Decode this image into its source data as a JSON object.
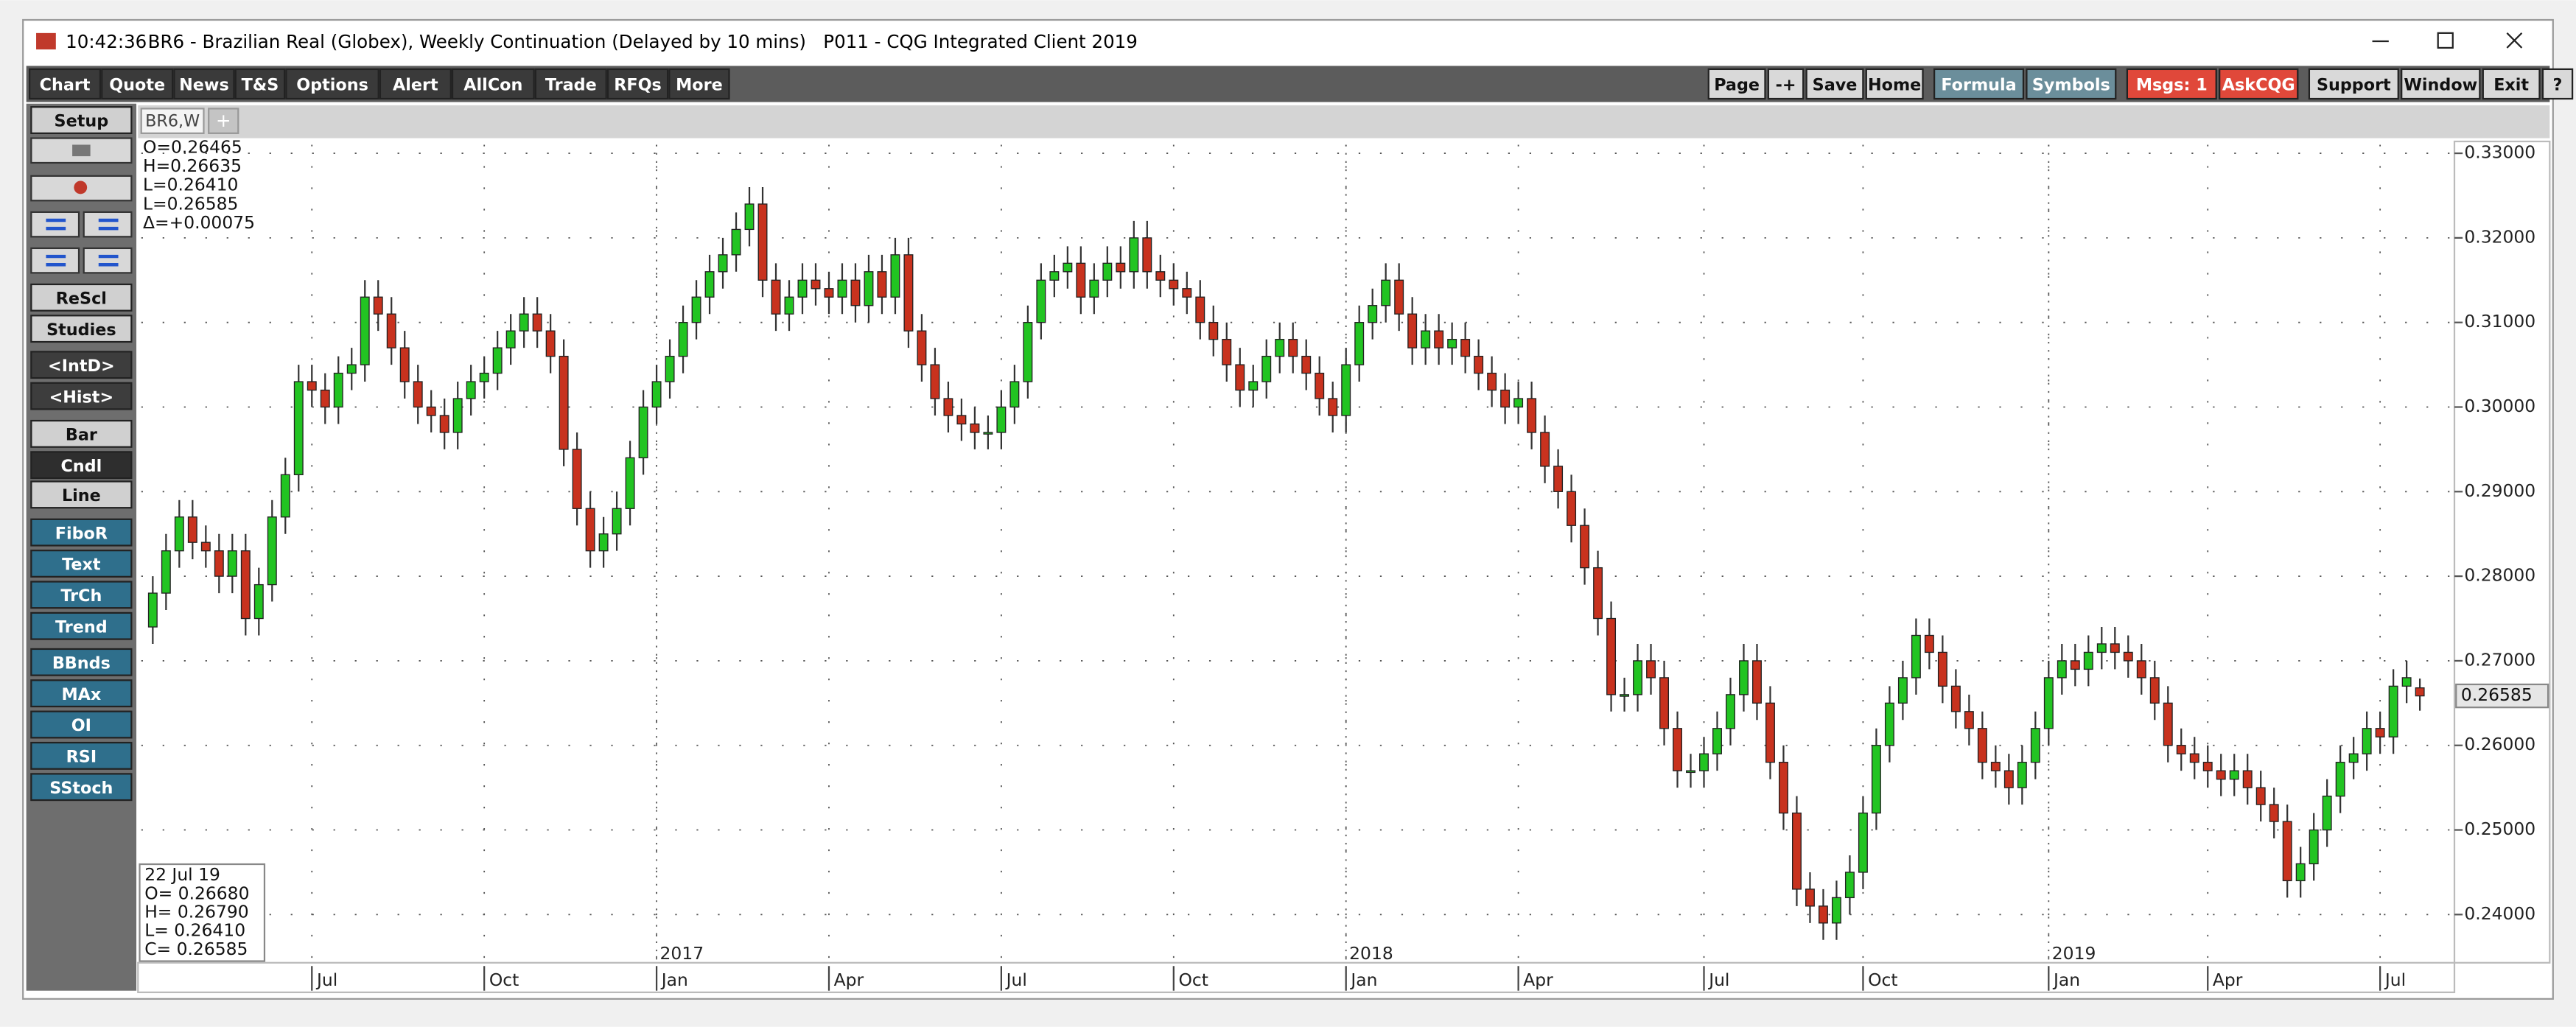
{
  "window": {
    "time": "10:42:36",
    "title": "BR6 - Brazilian Real (Globex), Weekly Continuation (Delayed by 10 mins)   P011 - CQG Integrated Client 2019"
  },
  "toolbar": {
    "left": [
      "Chart",
      "Quote",
      "News",
      "T&S",
      "Options",
      "Alert",
      "AllCon",
      "Trade",
      "RFQs",
      "More"
    ],
    "right": [
      "Page",
      "-+",
      "Save",
      "Home",
      "Formula",
      "Symbols",
      "Msgs: 1",
      "AskCQG",
      "Support",
      "Window",
      "Exit",
      "?"
    ]
  },
  "sidebar": [
    "Setup",
    "ReScl",
    "Studies",
    "<IntD>",
    "<Hist>",
    "Bar",
    "Cndl",
    "Line",
    "FiboR",
    "Text",
    "TrCh",
    "Trend",
    "BBnds",
    "MAx",
    "OI",
    "RSI",
    "SStoch"
  ],
  "tabs": [
    "BR6,W",
    "+"
  ],
  "cursor_readout": [
    "O=0.26465",
    "H=0.26635",
    "L=0.26410",
    "L=0.26585",
    "Δ=+0.00075"
  ],
  "bar_info": [
    "22 Jul 19",
    "O= 0.26680",
    "H= 0.26790",
    "L= 0.26410",
    "C= 0.26585"
  ],
  "chart_data": {
    "type": "candlestick",
    "up_color": "#22c422",
    "down_color": "#c8321e",
    "open": [
      0.274,
      0.278,
      0.283,
      0.287,
      0.284,
      0.283,
      0.28,
      0.283,
      0.275,
      0.279,
      0.287,
      0.292,
      0.303,
      0.302,
      0.3,
      0.304,
      0.305,
      0.313,
      0.311,
      0.307,
      0.303,
      0.3,
      0.299,
      0.297,
      0.301,
      0.303,
      0.304,
      0.307,
      0.309,
      0.311,
      0.309,
      0.306,
      0.295,
      0.288,
      0.283,
      0.285,
      0.288,
      0.294,
      0.3,
      0.303,
      0.306,
      0.31,
      0.313,
      0.316,
      0.318,
      0.321,
      0.324,
      0.315,
      0.311,
      0.313,
      0.315,
      0.314,
      0.313,
      0.315,
      0.312,
      0.316,
      0.313,
      0.318,
      0.309,
      0.305,
      0.301,
      0.299,
      0.298,
      0.297,
      0.297,
      0.3,
      0.303,
      0.31,
      0.315,
      0.316,
      0.317,
      0.313,
      0.315,
      0.317,
      0.316,
      0.32,
      0.316,
      0.315,
      0.314,
      0.313,
      0.31,
      0.308,
      0.305,
      0.302,
      0.303,
      0.306,
      0.308,
      0.306,
      0.304,
      0.301,
      0.299,
      0.305,
      0.31,
      0.312,
      0.315,
      0.311,
      0.307,
      0.309,
      0.307,
      0.308,
      0.306,
      0.304,
      0.302,
      0.3,
      0.301,
      0.297,
      0.293,
      0.29,
      0.286,
      0.281,
      0.275,
      0.266,
      0.266,
      0.27,
      0.268,
      0.262,
      0.257,
      0.257,
      0.259,
      0.262,
      0.266,
      0.27,
      0.265,
      0.258,
      0.252,
      0.243,
      0.241,
      0.239,
      0.242,
      0.245,
      0.252,
      0.26,
      0.265,
      0.268,
      0.273,
      0.271,
      0.267,
      0.264,
      0.262,
      0.258,
      0.257,
      0.255,
      0.258,
      0.262,
      0.268,
      0.27,
      0.269,
      0.271,
      0.272,
      0.271,
      0.27,
      0.268,
      0.265,
      0.26,
      0.259,
      0.258,
      0.257,
      0.256,
      0.257,
      0.255,
      0.253,
      0.251,
      0.244,
      0.246,
      0.25,
      0.254,
      0.258,
      0.259,
      0.262,
      0.261,
      0.267,
      0.2668
    ],
    "high": [
      0.28,
      0.285,
      0.289,
      0.289,
      0.286,
      0.285,
      0.285,
      0.285,
      0.281,
      0.289,
      0.294,
      0.305,
      0.305,
      0.304,
      0.306,
      0.307,
      0.315,
      0.315,
      0.313,
      0.309,
      0.305,
      0.302,
      0.301,
      0.303,
      0.305,
      0.306,
      0.309,
      0.311,
      0.313,
      0.313,
      0.311,
      0.308,
      0.297,
      0.29,
      0.287,
      0.29,
      0.296,
      0.302,
      0.305,
      0.308,
      0.312,
      0.315,
      0.318,
      0.32,
      0.323,
      0.326,
      0.326,
      0.317,
      0.315,
      0.317,
      0.317,
      0.316,
      0.317,
      0.317,
      0.318,
      0.318,
      0.32,
      0.32,
      0.311,
      0.307,
      0.303,
      0.301,
      0.3,
      0.299,
      0.302,
      0.305,
      0.312,
      0.317,
      0.318,
      0.319,
      0.319,
      0.317,
      0.319,
      0.319,
      0.322,
      0.322,
      0.318,
      0.317,
      0.316,
      0.315,
      0.312,
      0.31,
      0.307,
      0.305,
      0.308,
      0.31,
      0.31,
      0.308,
      0.306,
      0.303,
      0.307,
      0.312,
      0.314,
      0.317,
      0.317,
      0.313,
      0.311,
      0.311,
      0.31,
      0.31,
      0.308,
      0.306,
      0.304,
      0.303,
      0.303,
      0.299,
      0.295,
      0.292,
      0.288,
      0.283,
      0.277,
      0.268,
      0.272,
      0.272,
      0.27,
      0.264,
      0.259,
      0.261,
      0.264,
      0.268,
      0.272,
      0.272,
      0.267,
      0.26,
      0.254,
      0.245,
      0.243,
      0.244,
      0.247,
      0.254,
      0.262,
      0.267,
      0.27,
      0.275,
      0.275,
      0.273,
      0.269,
      0.266,
      0.264,
      0.26,
      0.259,
      0.26,
      0.264,
      0.27,
      0.272,
      0.272,
      0.273,
      0.274,
      0.274,
      0.273,
      0.272,
      0.27,
      0.267,
      0.262,
      0.261,
      0.26,
      0.259,
      0.259,
      0.259,
      0.257,
      0.255,
      0.253,
      0.248,
      0.252,
      0.256,
      0.26,
      0.261,
      0.264,
      0.264,
      0.269,
      0.27,
      0.2679
    ],
    "low": [
      0.272,
      0.276,
      0.281,
      0.282,
      0.281,
      0.278,
      0.278,
      0.273,
      0.273,
      0.277,
      0.285,
      0.29,
      0.3,
      0.298,
      0.298,
      0.302,
      0.303,
      0.309,
      0.305,
      0.301,
      0.298,
      0.297,
      0.295,
      0.295,
      0.299,
      0.301,
      0.302,
      0.305,
      0.307,
      0.307,
      0.304,
      0.293,
      0.286,
      0.281,
      0.281,
      0.283,
      0.286,
      0.292,
      0.298,
      0.301,
      0.304,
      0.308,
      0.311,
      0.314,
      0.316,
      0.319,
      0.313,
      0.309,
      0.309,
      0.311,
      0.312,
      0.311,
      0.311,
      0.31,
      0.31,
      0.311,
      0.311,
      0.307,
      0.303,
      0.299,
      0.297,
      0.296,
      0.295,
      0.295,
      0.295,
      0.298,
      0.301,
      0.308,
      0.313,
      0.314,
      0.311,
      0.311,
      0.313,
      0.314,
      0.314,
      0.314,
      0.313,
      0.312,
      0.311,
      0.308,
      0.306,
      0.303,
      0.3,
      0.3,
      0.301,
      0.304,
      0.304,
      0.302,
      0.299,
      0.297,
      0.297,
      0.303,
      0.308,
      0.31,
      0.309,
      0.305,
      0.305,
      0.305,
      0.305,
      0.304,
      0.302,
      0.3,
      0.298,
      0.298,
      0.295,
      0.291,
      0.288,
      0.284,
      0.279,
      0.273,
      0.264,
      0.264,
      0.264,
      0.266,
      0.26,
      0.255,
      0.255,
      0.255,
      0.257,
      0.26,
      0.264,
      0.263,
      0.256,
      0.25,
      0.241,
      0.239,
      0.237,
      0.237,
      0.24,
      0.243,
      0.25,
      0.258,
      0.263,
      0.266,
      0.269,
      0.265,
      0.262,
      0.26,
      0.256,
      0.255,
      0.253,
      0.253,
      0.256,
      0.26,
      0.266,
      0.267,
      0.267,
      0.269,
      0.269,
      0.268,
      0.266,
      0.263,
      0.258,
      0.257,
      0.256,
      0.255,
      0.254,
      0.254,
      0.253,
      0.251,
      0.249,
      0.242,
      0.242,
      0.244,
      0.248,
      0.252,
      0.256,
      0.257,
      0.259,
      0.259,
      0.265,
      0.2641
    ],
    "close": [
      0.278,
      0.283,
      0.287,
      0.284,
      0.283,
      0.28,
      0.283,
      0.275,
      0.279,
      0.287,
      0.292,
      0.303,
      0.302,
      0.3,
      0.304,
      0.305,
      0.313,
      0.311,
      0.307,
      0.303,
      0.3,
      0.299,
      0.297,
      0.301,
      0.303,
      0.304,
      0.307,
      0.309,
      0.311,
      0.309,
      0.306,
      0.295,
      0.288,
      0.283,
      0.285,
      0.288,
      0.294,
      0.3,
      0.303,
      0.306,
      0.31,
      0.313,
      0.316,
      0.318,
      0.321,
      0.324,
      0.315,
      0.311,
      0.313,
      0.315,
      0.314,
      0.313,
      0.315,
      0.312,
      0.316,
      0.313,
      0.318,
      0.309,
      0.305,
      0.301,
      0.299,
      0.298,
      0.297,
      0.297,
      0.3,
      0.303,
      0.31,
      0.315,
      0.316,
      0.317,
      0.313,
      0.315,
      0.317,
      0.316,
      0.32,
      0.316,
      0.315,
      0.314,
      0.313,
      0.31,
      0.308,
      0.305,
      0.302,
      0.303,
      0.306,
      0.308,
      0.306,
      0.304,
      0.301,
      0.299,
      0.305,
      0.31,
      0.312,
      0.315,
      0.311,
      0.307,
      0.309,
      0.307,
      0.308,
      0.306,
      0.304,
      0.302,
      0.3,
      0.301,
      0.297,
      0.293,
      0.29,
      0.286,
      0.281,
      0.275,
      0.266,
      0.266,
      0.27,
      0.268,
      0.262,
      0.257,
      0.257,
      0.259,
      0.262,
      0.266,
      0.27,
      0.265,
      0.258,
      0.252,
      0.243,
      0.241,
      0.239,
      0.242,
      0.245,
      0.252,
      0.26,
      0.265,
      0.268,
      0.273,
      0.271,
      0.267,
      0.264,
      0.262,
      0.258,
      0.257,
      0.255,
      0.258,
      0.262,
      0.268,
      0.27,
      0.269,
      0.271,
      0.272,
      0.271,
      0.27,
      0.268,
      0.265,
      0.26,
      0.259,
      0.258,
      0.257,
      0.256,
      0.257,
      0.255,
      0.253,
      0.251,
      0.244,
      0.246,
      0.25,
      0.254,
      0.258,
      0.259,
      0.262,
      0.261,
      0.267,
      0.268,
      0.26585
    ],
    "ylim": [
      0.2343,
      0.3314
    ],
    "yticks": [
      {
        "value": 0.24,
        "label": "0.24000"
      },
      {
        "value": 0.25,
        "label": "0.25000"
      },
      {
        "value": 0.26,
        "label": "0.26000"
      },
      {
        "value": 0.27,
        "label": "0.27000"
      },
      {
        "value": 0.28,
        "label": "0.28000"
      },
      {
        "value": 0.29,
        "label": "0.29000"
      },
      {
        "value": 0.3,
        "label": "0.30000"
      },
      {
        "value": 0.31,
        "label": "0.31000"
      },
      {
        "value": 0.32,
        "label": "0.32000"
      },
      {
        "value": 0.33,
        "label": "0.33000"
      }
    ],
    "xticks": [
      {
        "value": 12,
        "label": "Jul"
      },
      {
        "value": 25,
        "label": "Oct"
      },
      {
        "value": 38,
        "label": "Jan"
      },
      {
        "value": 51,
        "label": "Apr"
      },
      {
        "value": 64,
        "label": "Jul"
      },
      {
        "value": 77,
        "label": "Oct"
      },
      {
        "value": 90,
        "label": "Jan"
      },
      {
        "value": 103,
        "label": "Apr"
      },
      {
        "value": 117,
        "label": "Jul"
      },
      {
        "value": 129,
        "label": "Oct"
      },
      {
        "value": 143,
        "label": "Jan"
      },
      {
        "value": 155,
        "label": "Apr"
      },
      {
        "value": 168,
        "label": "Jul"
      }
    ],
    "year_ticks": [
      {
        "value": 38,
        "label": "2017"
      },
      {
        "value": 90,
        "label": "2018"
      },
      {
        "value": 143,
        "label": "2019"
      }
    ],
    "last_price": {
      "value": 0.26585,
      "label": "0.26585"
    }
  }
}
